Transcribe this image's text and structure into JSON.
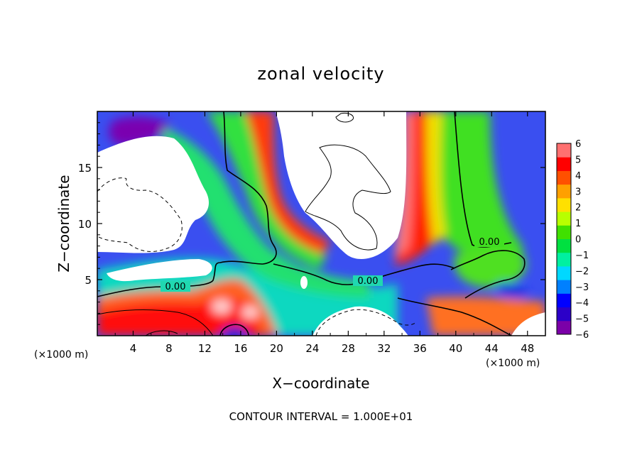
{
  "chart_data": {
    "type": "heatmap",
    "title": "zonal velocity",
    "xlabel": "X−coordinate",
    "ylabel": "Z−coordinate",
    "x_unit_label_left": "(×1000 m)",
    "x_unit_label_right": "(×1000 m)",
    "xlim": [
      0,
      50
    ],
    "ylim": [
      0,
      20
    ],
    "x_ticks": [
      4,
      8,
      12,
      16,
      20,
      24,
      28,
      32,
      36,
      40,
      44,
      48
    ],
    "x_tick_labels": [
      "4",
      "8",
      "12",
      "16",
      "20",
      "24",
      "28",
      "32",
      "36",
      "40",
      "44",
      "48"
    ],
    "y_ticks": [
      5,
      10,
      15
    ],
    "y_tick_labels": [
      "5",
      "10",
      "15"
    ],
    "colorbar": {
      "min": -6,
      "max": 6,
      "ticks": [
        6,
        5,
        4,
        3,
        2,
        1,
        0,
        -1,
        -2,
        -3,
        -4,
        -5,
        -6
      ],
      "tick_labels": [
        "6",
        "5",
        "4",
        "3",
        "2",
        "1",
        "0",
        "−1",
        "−2",
        "−3",
        "−4",
        "−5",
        "−6"
      ],
      "colors": [
        "#7b00a8",
        "#2c00c8",
        "#0000ff",
        "#0080ff",
        "#00d8ff",
        "#00f0a0",
        "#00e040",
        "#40e000",
        "#b8ff00",
        "#ffe000",
        "#ffa000",
        "#ff5000",
        "#ff0000",
        "#ff7070"
      ],
      "outside_range_color": "#ffffff"
    },
    "contour_labels": [
      {
        "text": "0.00",
        "x": 5.5,
        "y": 4.4
      },
      {
        "text": "0.00",
        "x": 30.0,
        "y": 4.7
      },
      {
        "text": "0.00",
        "x": 43.5,
        "y": 8.3
      }
    ],
    "contour_interval_text": "CONTOUR INTERVAL = 1.000E+01"
  }
}
